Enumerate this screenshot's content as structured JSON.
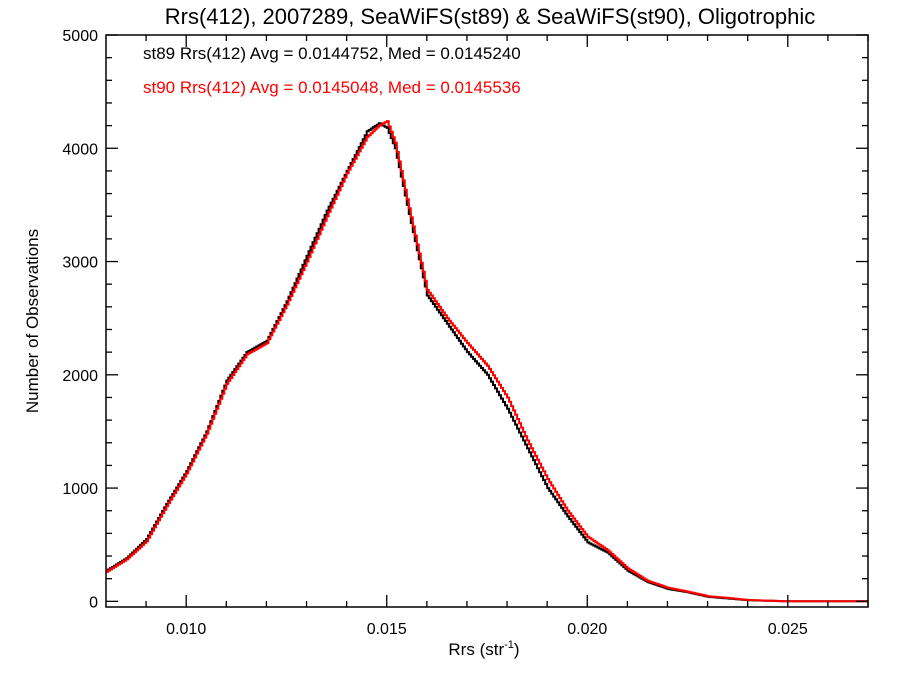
{
  "chart_data": {
    "type": "line",
    "title": "Rrs(412), 2007289, SeaWiFS(st89) & SeaWiFS(st90), Oligotrophic",
    "xlabel": "Rrs (str",
    "xlabel_sup": "-1",
    "xlabel_close": ")",
    "ylabel": "Number of Observations",
    "xlim": [
      0.008,
      0.027
    ],
    "ylim": [
      -50,
      5000
    ],
    "xticks": [
      0.01,
      0.015,
      0.02,
      0.025
    ],
    "xtick_labels": [
      "0.010",
      "0.015",
      "0.020",
      "0.025"
    ],
    "yticks": [
      0,
      1000,
      2000,
      3000,
      4000,
      5000
    ],
    "ytick_labels": [
      "0",
      "1000",
      "2000",
      "3000",
      "4000",
      "5000"
    ],
    "grid": false,
    "annotations": [
      {
        "text": "st89 Rrs(412) Avg = 0.0144752, Med = 0.0145240",
        "color": "#000000"
      },
      {
        "text": "st90 Rrs(412) Avg = 0.0145048, Med = 0.0145536",
        "color": "#ff0000"
      }
    ],
    "series": [
      {
        "name": "st89",
        "color": "#000000",
        "x": [
          0.008,
          0.0085,
          0.009,
          0.0095,
          0.01,
          0.0105,
          0.011,
          0.0115,
          0.012,
          0.0125,
          0.013,
          0.0135,
          0.014,
          0.0145,
          0.0148,
          0.015,
          0.0152,
          0.0155,
          0.016,
          0.0165,
          0.017,
          0.0175,
          0.018,
          0.0185,
          0.019,
          0.0195,
          0.02,
          0.0205,
          0.021,
          0.0215,
          0.022,
          0.0225,
          0.023,
          0.0235,
          0.024,
          0.0245,
          0.025,
          0.0255,
          0.026,
          0.0265,
          0.027
        ],
        "y": [
          270,
          380,
          550,
          860,
          1150,
          1500,
          1950,
          2200,
          2300,
          2650,
          3050,
          3450,
          3800,
          4150,
          4220,
          4180,
          4000,
          3500,
          2700,
          2450,
          2200,
          2000,
          1700,
          1350,
          1000,
          750,
          520,
          430,
          270,
          170,
          110,
          80,
          40,
          25,
          10,
          5,
          0,
          0,
          0,
          0,
          0
        ]
      },
      {
        "name": "st90",
        "color": "#ff0000",
        "x": [
          0.008,
          0.0085,
          0.009,
          0.0095,
          0.01,
          0.0105,
          0.011,
          0.0115,
          0.012,
          0.0125,
          0.013,
          0.0135,
          0.014,
          0.0145,
          0.0148,
          0.015,
          0.0152,
          0.0155,
          0.016,
          0.0165,
          0.017,
          0.0175,
          0.018,
          0.0185,
          0.019,
          0.0195,
          0.02,
          0.0205,
          0.021,
          0.0215,
          0.022,
          0.0225,
          0.023,
          0.0235,
          0.024,
          0.0245,
          0.025,
          0.0255,
          0.026,
          0.0265,
          0.027
        ],
        "y": [
          260,
          370,
          530,
          840,
          1130,
          1480,
          1920,
          2180,
          2280,
          2620,
          3000,
          3400,
          3780,
          4100,
          4200,
          4240,
          4050,
          3550,
          2750,
          2500,
          2280,
          2080,
          1800,
          1420,
          1080,
          800,
          570,
          450,
          290,
          180,
          120,
          85,
          45,
          30,
          12,
          6,
          0,
          0,
          0,
          0,
          0
        ]
      }
    ]
  }
}
